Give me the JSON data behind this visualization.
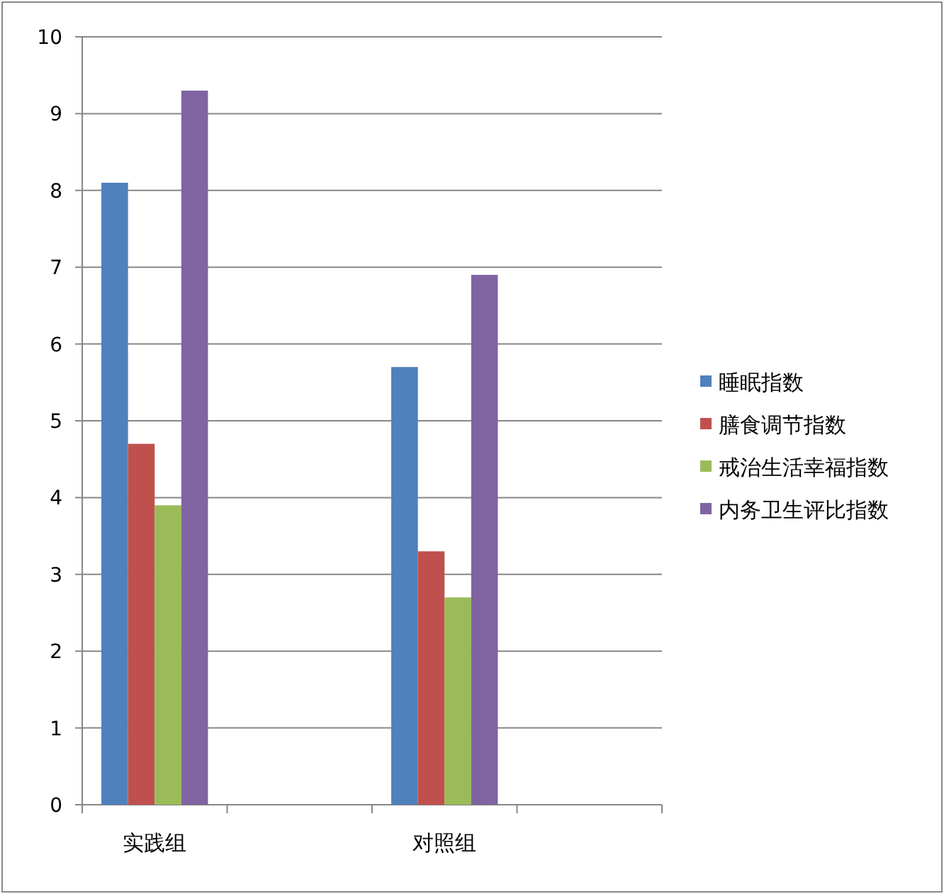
{
  "chart_data": {
    "type": "bar",
    "categories": [
      "实践组",
      null,
      "对照组",
      null
    ],
    "series": [
      {
        "name": "睡眠指数",
        "color": "#4f81bd",
        "values": [
          8.1,
          null,
          5.7,
          null
        ]
      },
      {
        "name": "膳食调节指数",
        "color": "#c0504d",
        "values": [
          4.7,
          null,
          3.3,
          null
        ]
      },
      {
        "name": "戒治生活幸福指数",
        "color": "#9bbb59",
        "values": [
          3.9,
          null,
          2.7,
          null
        ]
      },
      {
        "name": "内务卫生评比指数",
        "color": "#8064a2",
        "values": [
          9.3,
          null,
          6.9,
          null
        ]
      }
    ],
    "ylim": [
      0,
      10
    ],
    "yticks": [
      0,
      1,
      2,
      3,
      4,
      5,
      6,
      7,
      8,
      9,
      10
    ],
    "grid": "y",
    "legend": "right"
  }
}
